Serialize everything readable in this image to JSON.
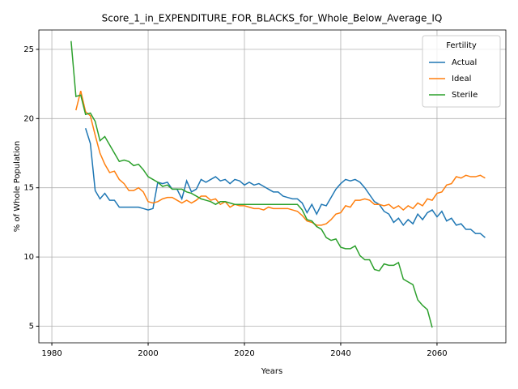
{
  "chart_data": {
    "type": "line",
    "title": "Score_1_in_EXPENDITURE_FOR_BLACKS_for_Whole_Below_Average_IQ",
    "xlabel": "Years",
    "ylabel": "% of Whole Population",
    "legend_title": "Fertility",
    "legend": "upper right",
    "grid": true,
    "x": [
      1984,
      1985,
      1986,
      1987,
      1988,
      1989,
      1990,
      1991,
      1992,
      1993,
      1994,
      1995,
      1996,
      1997,
      1998,
      1999,
      2000,
      2001,
      2002,
      2003,
      2004,
      2005,
      2006,
      2007,
      2008,
      2009,
      2010,
      2011,
      2012,
      2013,
      2014,
      2015,
      2016,
      2017,
      2018,
      2019,
      2020,
      2021,
      2022,
      2023,
      2024,
      2025,
      2026,
      2027,
      2028,
      2029,
      2030,
      2031,
      2032,
      2033,
      2034,
      2035,
      2036,
      2037,
      2038,
      2039,
      2040,
      2041,
      2042,
      2043,
      2044,
      2045,
      2046,
      2047,
      2048,
      2049,
      2050,
      2051,
      2052,
      2053,
      2054,
      2055,
      2056,
      2057,
      2058,
      2059,
      2060,
      2061,
      2062,
      2063,
      2064,
      2065,
      2066,
      2067,
      2068,
      2069,
      2070
    ],
    "xlim": [
      1977.3,
      2074.3
    ],
    "xticks": [
      1980,
      2000,
      2020,
      2040,
      2060
    ],
    "ylim": [
      3.8,
      26.4
    ],
    "yticks": [
      5,
      10,
      15,
      20,
      25
    ],
    "series": [
      {
        "name": "Actual",
        "color": "#1f77b4",
        "values": [
          null,
          null,
          null,
          19.3,
          18.2,
          14.8,
          14.2,
          14.6,
          14.1,
          14.1,
          13.6,
          13.6,
          13.6,
          13.6,
          13.6,
          13.5,
          13.4,
          13.5,
          15.4,
          15.3,
          15.4,
          14.9,
          14.9,
          14.2,
          15.5,
          14.7,
          14.9,
          15.6,
          15.4,
          15.6,
          15.8,
          15.5,
          15.6,
          15.3,
          15.6,
          15.5,
          15.2,
          15.4,
          15.2,
          15.3,
          15.1,
          14.9,
          14.7,
          14.7,
          14.4,
          14.3,
          14.2,
          14.2,
          13.9,
          13.2,
          13.8,
          13.1,
          13.8,
          13.7,
          14.3,
          14.9,
          15.3,
          15.6,
          15.5,
          15.6,
          15.4,
          15.0,
          14.5,
          14.0,
          13.8,
          13.3,
          13.1,
          12.5,
          12.8,
          12.3,
          12.7,
          12.4,
          13.1,
          12.7,
          13.2,
          13.4,
          12.9,
          13.3,
          12.6,
          12.8,
          12.3,
          12.4,
          12.0,
          12.0,
          11.7,
          11.7,
          11.4
        ]
      },
      {
        "name": "Ideal",
        "color": "#ff7f0e",
        "values": [
          null,
          20.6,
          22.0,
          20.5,
          20.2,
          18.8,
          17.5,
          16.7,
          16.1,
          16.2,
          15.6,
          15.3,
          14.8,
          14.8,
          15.0,
          14.7,
          14.0,
          13.9,
          14.0,
          14.2,
          14.3,
          14.3,
          14.1,
          13.9,
          14.1,
          13.9,
          14.1,
          14.4,
          14.4,
          14.1,
          14.2,
          13.8,
          14.0,
          13.6,
          13.8,
          13.7,
          13.7,
          13.6,
          13.5,
          13.5,
          13.4,
          13.6,
          13.5,
          13.5,
          13.5,
          13.5,
          13.4,
          13.3,
          13.0,
          12.6,
          12.5,
          12.3,
          12.3,
          12.4,
          12.7,
          13.1,
          13.2,
          13.7,
          13.6,
          14.1,
          14.1,
          14.2,
          14.1,
          13.8,
          13.8,
          13.7,
          13.8,
          13.5,
          13.7,
          13.4,
          13.7,
          13.5,
          13.9,
          13.7,
          14.2,
          14.1,
          14.6,
          14.7,
          15.2,
          15.3,
          15.8,
          15.7,
          15.9,
          15.8,
          15.8,
          15.9,
          15.7
        ]
      },
      {
        "name": "Sterile",
        "color": "#2ca02c",
        "values": [
          25.6,
          21.6,
          21.7,
          20.3,
          20.4,
          19.8,
          18.4,
          18.7,
          18.1,
          17.5,
          16.9,
          17.0,
          16.9,
          16.6,
          16.7,
          16.3,
          15.8,
          15.6,
          15.4,
          15.1,
          15.2,
          14.9,
          14.9,
          14.9,
          14.7,
          14.6,
          14.4,
          14.2,
          14.1,
          14.0,
          13.8,
          14.0,
          14.0,
          13.9,
          13.8,
          13.8,
          13.8,
          13.8,
          13.8,
          13.8,
          13.8,
          13.8,
          13.8,
          13.8,
          13.8,
          13.8,
          13.8,
          13.8,
          13.4,
          12.7,
          12.6,
          12.2,
          12.0,
          11.4,
          11.2,
          11.3,
          10.7,
          10.6,
          10.6,
          10.8,
          10.1,
          9.8,
          9.8,
          9.1,
          9.0,
          9.5,
          9.4,
          9.4,
          9.6,
          8.4,
          8.2,
          8.0,
          6.9,
          6.5,
          6.2,
          4.9,
          null,
          null,
          null,
          null,
          null,
          null,
          null,
          null,
          null,
          null,
          null
        ]
      }
    ]
  }
}
